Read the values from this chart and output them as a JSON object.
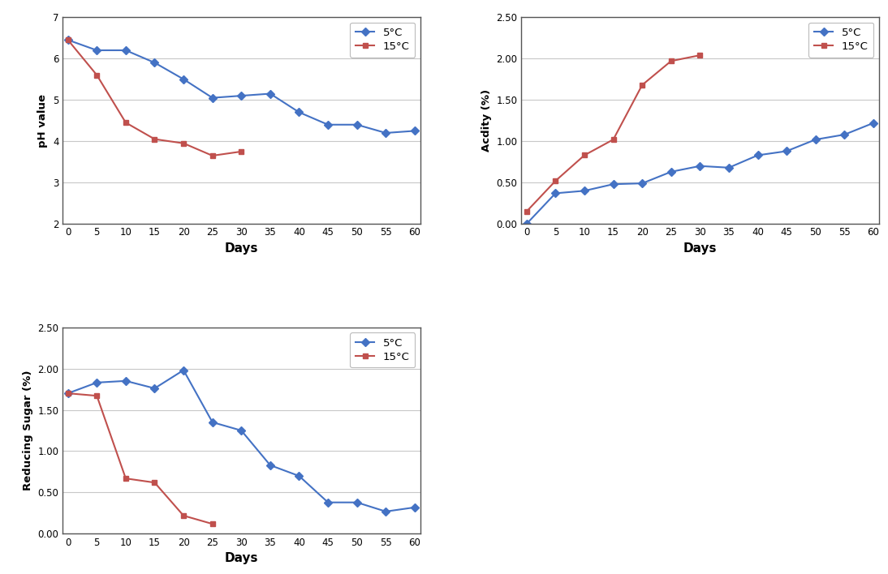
{
  "ph": {
    "days_5c": [
      0,
      5,
      10,
      15,
      20,
      25,
      30,
      35,
      40,
      45,
      50,
      55,
      60
    ],
    "vals_5c": [
      6.45,
      6.2,
      6.2,
      5.9,
      5.5,
      5.05,
      5.1,
      5.15,
      4.7,
      4.4,
      4.4,
      4.2,
      4.25
    ],
    "days_15c": [
      0,
      5,
      10,
      15,
      20,
      25,
      30
    ],
    "vals_15c": [
      6.45,
      5.6,
      4.45,
      4.05,
      3.95,
      3.65,
      3.75
    ],
    "ylabel": "pH value",
    "xlabel": "Days",
    "ylim": [
      2,
      7
    ],
    "yticks": [
      2,
      3,
      4,
      5,
      6,
      7
    ],
    "ytick_labels": [
      "2",
      "3",
      "4",
      "5",
      "6",
      "7"
    ],
    "xticks": [
      0,
      5,
      10,
      15,
      20,
      25,
      30,
      35,
      40,
      45,
      50,
      55,
      60
    ]
  },
  "acidity": {
    "days_5c": [
      0,
      5,
      10,
      15,
      20,
      25,
      30,
      35,
      40,
      45,
      50,
      55,
      60
    ],
    "vals_5c": [
      0.0,
      0.37,
      0.4,
      0.48,
      0.49,
      0.63,
      0.7,
      0.68,
      0.83,
      0.88,
      1.02,
      1.08,
      1.22
    ],
    "days_15c": [
      0,
      5,
      10,
      15,
      20,
      25,
      30
    ],
    "vals_15c": [
      0.15,
      0.52,
      0.83,
      1.02,
      1.68,
      1.97,
      2.04
    ],
    "ylabel": "Acdity (%)",
    "xlabel": "Days",
    "ylim": [
      0.0,
      2.5
    ],
    "yticks": [
      0.0,
      0.5,
      1.0,
      1.5,
      2.0,
      2.5
    ],
    "ytick_labels": [
      "0.00",
      "0.50",
      "1.00",
      "1.50",
      "2.00",
      "2.50"
    ],
    "xticks": [
      0,
      5,
      10,
      15,
      20,
      25,
      30,
      35,
      40,
      45,
      50,
      55,
      60
    ]
  },
  "sugar": {
    "days_5c": [
      0,
      5,
      10,
      15,
      20,
      25,
      30,
      35,
      40,
      45,
      50,
      55,
      60
    ],
    "vals_5c": [
      1.7,
      1.83,
      1.85,
      1.76,
      1.98,
      1.35,
      1.25,
      0.83,
      0.7,
      0.38,
      0.38,
      0.27,
      0.32
    ],
    "days_15c": [
      0,
      5,
      10,
      15,
      20,
      25
    ],
    "vals_15c": [
      1.7,
      1.67,
      0.67,
      0.62,
      0.22,
      0.12
    ],
    "ylabel": "Reducing Sugar (%)",
    "xlabel": "Days",
    "ylim": [
      0.0,
      2.5
    ],
    "yticks": [
      0.0,
      0.5,
      1.0,
      1.5,
      2.0,
      2.5
    ],
    "ytick_labels": [
      "0.00",
      "0.50",
      "1.00",
      "1.50",
      "2.00",
      "2.50"
    ],
    "xticks": [
      0,
      5,
      10,
      15,
      20,
      25,
      30,
      35,
      40,
      45,
      50,
      55,
      60
    ]
  },
  "color_5c": "#4472C4",
  "color_15c": "#C0504D",
  "marker_5c": "D",
  "marker_15c": "s",
  "legend_5c": "5°C",
  "legend_15c": "15°C",
  "bg_color": "#ffffff",
  "plot_bg": "#ffffff",
  "grid_color": "#c8c8c8",
  "spine_color": "#aaaaaa",
  "border_color": "#555555"
}
